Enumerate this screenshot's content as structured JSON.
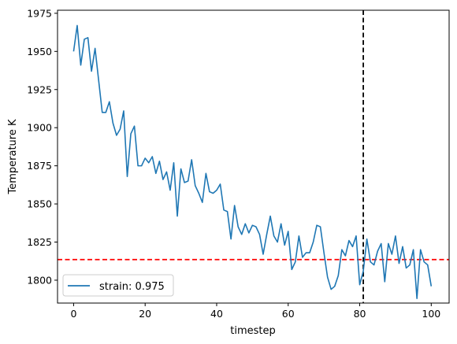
{
  "chart_data": {
    "type": "line",
    "xlabel": "timestep",
    "ylabel": "Temperature K",
    "xlim": [
      -4.5,
      105
    ],
    "ylim": [
      1785,
      1977
    ],
    "x_ticks": [
      0,
      20,
      40,
      60,
      80,
      100
    ],
    "y_ticks": [
      1800,
      1825,
      1850,
      1875,
      1900,
      1925,
      1950,
      1975
    ],
    "grid": false,
    "legend_position": "lower-left",
    "series": [
      {
        "name": "strain: 0.975",
        "color": "#1f77b4",
        "x": [
          0,
          1,
          2,
          3,
          4,
          5,
          6,
          7,
          8,
          9,
          10,
          11,
          12,
          13,
          14,
          15,
          16,
          17,
          18,
          19,
          20,
          21,
          22,
          23,
          24,
          25,
          26,
          27,
          28,
          29,
          30,
          31,
          32,
          33,
          34,
          35,
          36,
          37,
          38,
          39,
          40,
          41,
          42,
          43,
          44,
          45,
          46,
          47,
          48,
          49,
          50,
          51,
          52,
          53,
          54,
          55,
          56,
          57,
          58,
          59,
          60,
          61,
          62,
          63,
          64,
          65,
          66,
          67,
          68,
          69,
          70,
          71,
          72,
          73,
          74,
          75,
          76,
          77,
          78,
          79,
          80,
          81,
          82,
          83,
          84,
          85,
          86,
          87,
          88,
          89,
          90,
          91,
          92,
          93,
          94,
          95,
          96,
          97,
          98,
          99,
          100
        ],
        "values": [
          1950,
          1967,
          1941,
          1958,
          1959,
          1937,
          1952,
          1931,
          1910,
          1910,
          1917,
          1903,
          1895,
          1899,
          1911,
          1868,
          1896,
          1901,
          1875,
          1875,
          1880,
          1877,
          1881,
          1870,
          1878,
          1866,
          1871,
          1859,
          1877,
          1842,
          1873,
          1864,
          1865,
          1879,
          1862,
          1857,
          1851,
          1870,
          1858,
          1857,
          1859,
          1863,
          1846,
          1845,
          1827,
          1849,
          1835,
          1830,
          1837,
          1831,
          1836,
          1835,
          1830,
          1817,
          1830,
          1842,
          1829,
          1825,
          1837,
          1823,
          1832,
          1807,
          1812,
          1829,
          1815,
          1818,
          1818,
          1825,
          1836,
          1835,
          1818,
          1802,
          1794,
          1796,
          1803,
          1820,
          1816,
          1826,
          1822,
          1829,
          1797,
          1806,
          1827,
          1812,
          1810,
          1819,
          1824,
          1799,
          1824,
          1817,
          1829,
          1811,
          1822,
          1808,
          1810,
          1820,
          1788,
          1820,
          1812,
          1810,
          1796
        ]
      }
    ],
    "reference_lines": [
      {
        "orientation": "horizontal",
        "value": 1813.5,
        "color": "#ff0000",
        "style": "dashed"
      },
      {
        "orientation": "vertical",
        "value": 81,
        "color": "#000000",
        "style": "dashed"
      }
    ]
  }
}
